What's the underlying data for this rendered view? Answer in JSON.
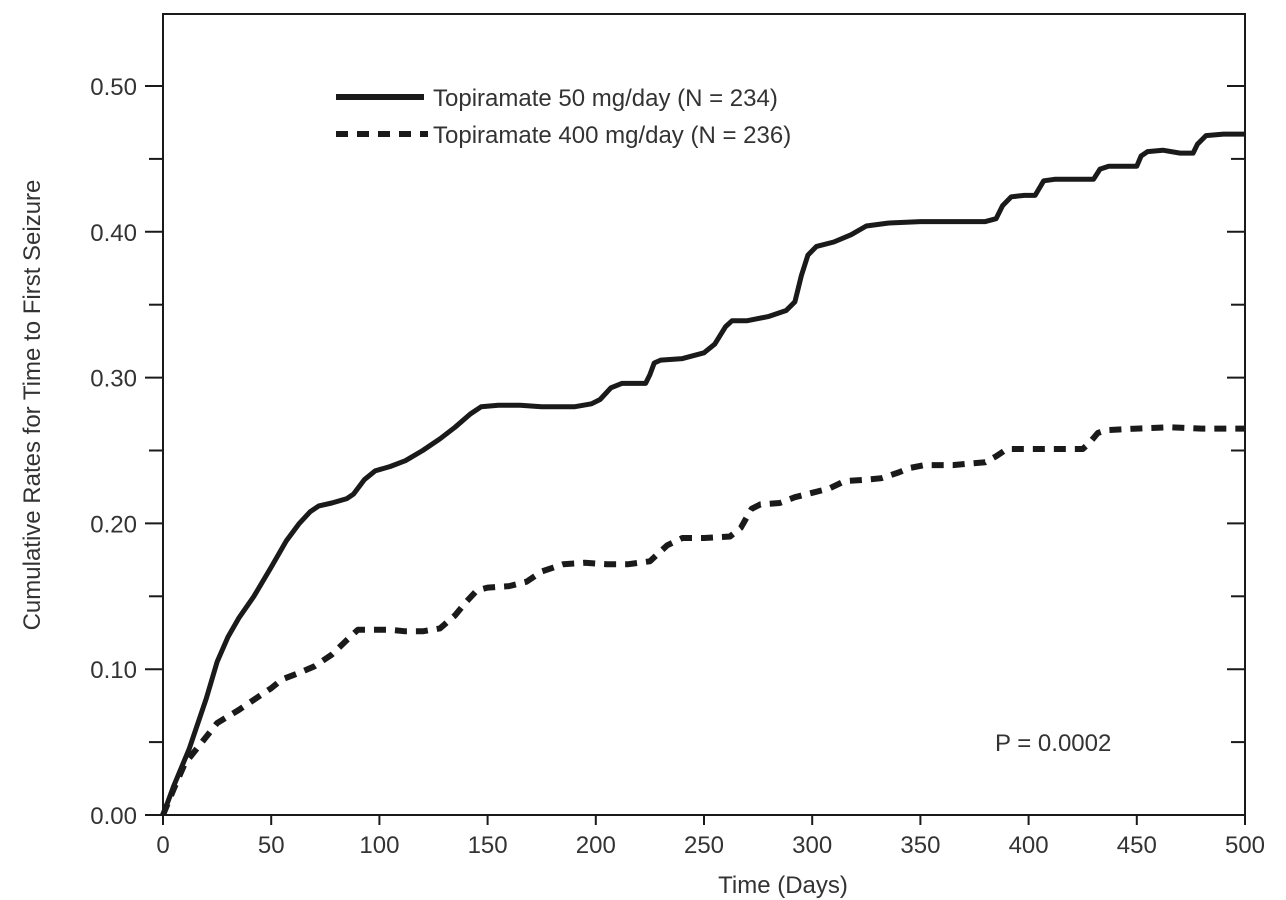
{
  "chart_data": {
    "type": "line",
    "xlabel": "Time (Days)",
    "ylabel": "Cumulative Rates for Time to First Seizure",
    "xlim": [
      0,
      500
    ],
    "ylim": [
      0,
      0.55
    ],
    "x_ticks": [
      0,
      50,
      100,
      150,
      200,
      250,
      300,
      350,
      400,
      450,
      500
    ],
    "x_tick_labels": [
      "0",
      "50",
      "100",
      "150",
      "200",
      "250",
      "300",
      "350",
      "400",
      "450",
      "500"
    ],
    "y_ticks": [
      0,
      0.1,
      0.2,
      0.3,
      0.4,
      0.5
    ],
    "y_tick_labels": [
      "0.00",
      "0.10",
      "0.20",
      "0.30",
      "0.40",
      "0.50"
    ],
    "y_minor_ticks": [
      0.05,
      0.15,
      0.25,
      0.35,
      0.45
    ],
    "grid": false,
    "legend_position": "top-left",
    "annotation": "P = 0.0002",
    "series": [
      {
        "name": "Topiramate 50 mg/day (N = 234)",
        "style": "solid",
        "color": "#1a1a1a",
        "points": [
          [
            0,
            0
          ],
          [
            5,
            0.02
          ],
          [
            12,
            0.045
          ],
          [
            20,
            0.08
          ],
          [
            25,
            0.105
          ],
          [
            30,
            0.122
          ],
          [
            35,
            0.135
          ],
          [
            42,
            0.15
          ],
          [
            50,
            0.17
          ],
          [
            57,
            0.188
          ],
          [
            63,
            0.2
          ],
          [
            68,
            0.208
          ],
          [
            72,
            0.212
          ],
          [
            78,
            0.214
          ],
          [
            85,
            0.217
          ],
          [
            88,
            0.22
          ],
          [
            93,
            0.23
          ],
          [
            98,
            0.236
          ],
          [
            105,
            0.239
          ],
          [
            112,
            0.243
          ],
          [
            120,
            0.25
          ],
          [
            128,
            0.258
          ],
          [
            135,
            0.266
          ],
          [
            142,
            0.275
          ],
          [
            147,
            0.28
          ],
          [
            155,
            0.281
          ],
          [
            165,
            0.281
          ],
          [
            175,
            0.28
          ],
          [
            190,
            0.28
          ],
          [
            198,
            0.282
          ],
          [
            202,
            0.285
          ],
          [
            207,
            0.293
          ],
          [
            212,
            0.296
          ],
          [
            218,
            0.296
          ],
          [
            223,
            0.296
          ],
          [
            225,
            0.302
          ],
          [
            227,
            0.31
          ],
          [
            230,
            0.312
          ],
          [
            240,
            0.313
          ],
          [
            250,
            0.317
          ],
          [
            255,
            0.323
          ],
          [
            260,
            0.335
          ],
          [
            263,
            0.339
          ],
          [
            270,
            0.339
          ],
          [
            280,
            0.342
          ],
          [
            288,
            0.346
          ],
          [
            292,
            0.352
          ],
          [
            295,
            0.37
          ],
          [
            298,
            0.384
          ],
          [
            302,
            0.39
          ],
          [
            310,
            0.393
          ],
          [
            318,
            0.398
          ],
          [
            325,
            0.404
          ],
          [
            335,
            0.406
          ],
          [
            350,
            0.407
          ],
          [
            365,
            0.407
          ],
          [
            380,
            0.407
          ],
          [
            385,
            0.409
          ],
          [
            388,
            0.418
          ],
          [
            392,
            0.424
          ],
          [
            398,
            0.425
          ],
          [
            403,
            0.425
          ],
          [
            405,
            0.43
          ],
          [
            407,
            0.435
          ],
          [
            412,
            0.436
          ],
          [
            422,
            0.436
          ],
          [
            430,
            0.436
          ],
          [
            433,
            0.443
          ],
          [
            437,
            0.445
          ],
          [
            443,
            0.445
          ],
          [
            450,
            0.445
          ],
          [
            452,
            0.452
          ],
          [
            455,
            0.455
          ],
          [
            462,
            0.456
          ],
          [
            470,
            0.454
          ],
          [
            476,
            0.454
          ],
          [
            478,
            0.46
          ],
          [
            482,
            0.466
          ],
          [
            490,
            0.467
          ],
          [
            500,
            0.467
          ]
        ]
      },
      {
        "name": "Topiramate 400 mg/day (N = 236)",
        "style": "dashed",
        "color": "#1a1a1a",
        "points": [
          [
            0,
            0
          ],
          [
            5,
            0.018
          ],
          [
            10,
            0.035
          ],
          [
            18,
            0.05
          ],
          [
            25,
            0.063
          ],
          [
            35,
            0.072
          ],
          [
            45,
            0.082
          ],
          [
            50,
            0.087
          ],
          [
            55,
            0.093
          ],
          [
            62,
            0.097
          ],
          [
            70,
            0.102
          ],
          [
            78,
            0.11
          ],
          [
            85,
            0.12
          ],
          [
            90,
            0.127
          ],
          [
            98,
            0.127
          ],
          [
            105,
            0.127
          ],
          [
            112,
            0.126
          ],
          [
            120,
            0.126
          ],
          [
            128,
            0.128
          ],
          [
            135,
            0.137
          ],
          [
            140,
            0.146
          ],
          [
            145,
            0.154
          ],
          [
            150,
            0.156
          ],
          [
            160,
            0.157
          ],
          [
            168,
            0.16
          ],
          [
            175,
            0.167
          ],
          [
            185,
            0.172
          ],
          [
            195,
            0.173
          ],
          [
            205,
            0.172
          ],
          [
            215,
            0.172
          ],
          [
            225,
            0.174
          ],
          [
            233,
            0.185
          ],
          [
            240,
            0.19
          ],
          [
            250,
            0.19
          ],
          [
            262,
            0.191
          ],
          [
            267,
            0.197
          ],
          [
            272,
            0.21
          ],
          [
            276,
            0.213
          ],
          [
            285,
            0.214
          ],
          [
            292,
            0.218
          ],
          [
            300,
            0.221
          ],
          [
            308,
            0.224
          ],
          [
            315,
            0.229
          ],
          [
            325,
            0.23
          ],
          [
            332,
            0.231
          ],
          [
            340,
            0.235
          ],
          [
            345,
            0.238
          ],
          [
            352,
            0.24
          ],
          [
            365,
            0.24
          ],
          [
            380,
            0.242
          ],
          [
            385,
            0.246
          ],
          [
            390,
            0.251
          ],
          [
            400,
            0.251
          ],
          [
            412,
            0.251
          ],
          [
            425,
            0.251
          ],
          [
            428,
            0.255
          ],
          [
            432,
            0.262
          ],
          [
            436,
            0.264
          ],
          [
            450,
            0.265
          ],
          [
            465,
            0.266
          ],
          [
            480,
            0.265
          ],
          [
            500,
            0.265
          ]
        ]
      }
    ]
  }
}
